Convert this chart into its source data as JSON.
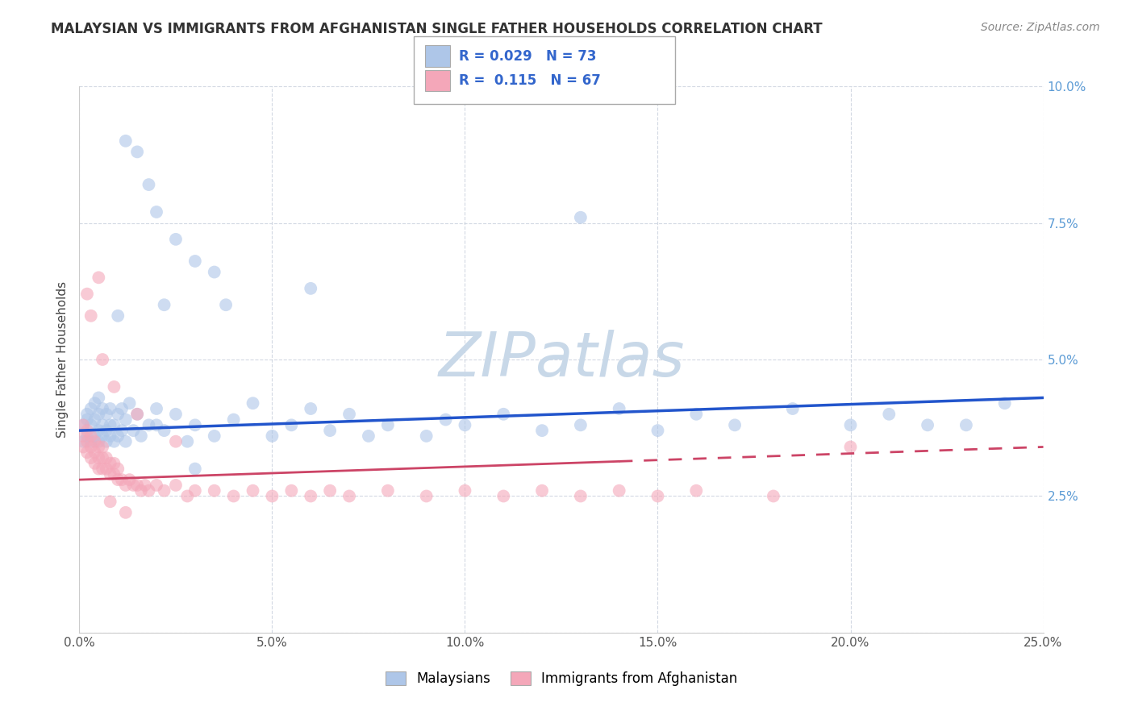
{
  "title": "MALAYSIAN VS IMMIGRANTS FROM AFGHANISTAN SINGLE FATHER HOUSEHOLDS CORRELATION CHART",
  "source": "Source: ZipAtlas.com",
  "ylabel": "Single Father Households",
  "xlim": [
    0.0,
    0.25
  ],
  "ylim": [
    0.0,
    0.1
  ],
  "xticks": [
    0.0,
    0.05,
    0.1,
    0.15,
    0.2,
    0.25
  ],
  "yticks": [
    0.0,
    0.025,
    0.05,
    0.075,
    0.1
  ],
  "xticklabels": [
    "0.0%",
    "5.0%",
    "10.0%",
    "15.0%",
    "20.0%",
    "25.0%"
  ],
  "yticklabels": [
    "",
    "2.5%",
    "5.0%",
    "7.5%",
    "10.0%"
  ],
  "legend_entries": [
    {
      "label": "Malaysians",
      "color": "#aec6e8",
      "R": "0.029",
      "N": "73"
    },
    {
      "label": "Immigrants from Afghanistan",
      "color": "#f4a7b9",
      "R": "0.115",
      "N": "67"
    }
  ],
  "watermark": "ZIPatlas",
  "watermark_color": "#c8d8e8",
  "blue_color": "#aec6e8",
  "pink_color": "#f4a7b9",
  "blue_edge_color": "#7bafd4",
  "pink_edge_color": "#e87090",
  "blue_line_color": "#2255cc",
  "pink_line_color": "#cc4466",
  "grid_color": "#c8d0dc",
  "background_color": "#ffffff",
  "title_color": "#333333",
  "source_color": "#888888",
  "ytick_color": "#5b9bd5",
  "xtick_color": "#555555",
  "malaysian_x": [
    0.001,
    0.001,
    0.002,
    0.002,
    0.002,
    0.003,
    0.003,
    0.003,
    0.004,
    0.004,
    0.004,
    0.005,
    0.005,
    0.005,
    0.005,
    0.006,
    0.006,
    0.006,
    0.007,
    0.007,
    0.007,
    0.008,
    0.008,
    0.008,
    0.009,
    0.009,
    0.01,
    0.01,
    0.011,
    0.011,
    0.012,
    0.012,
    0.013,
    0.014,
    0.015,
    0.016,
    0.018,
    0.02,
    0.022,
    0.025,
    0.028,
    0.03,
    0.035,
    0.04,
    0.045,
    0.05,
    0.055,
    0.06,
    0.065,
    0.07,
    0.075,
    0.08,
    0.09,
    0.095,
    0.1,
    0.11,
    0.12,
    0.13,
    0.14,
    0.15,
    0.16,
    0.17,
    0.185,
    0.2,
    0.21,
    0.22,
    0.23,
    0.24,
    0.13,
    0.06,
    0.02,
    0.03,
    0.01
  ],
  "malaysian_y": [
    0.035,
    0.038,
    0.036,
    0.039,
    0.04,
    0.035,
    0.038,
    0.041,
    0.036,
    0.039,
    0.042,
    0.035,
    0.037,
    0.04,
    0.043,
    0.036,
    0.038,
    0.041,
    0.035,
    0.037,
    0.04,
    0.036,
    0.038,
    0.041,
    0.035,
    0.038,
    0.036,
    0.04,
    0.037,
    0.041,
    0.035,
    0.039,
    0.042,
    0.037,
    0.04,
    0.036,
    0.038,
    0.041,
    0.037,
    0.04,
    0.035,
    0.038,
    0.036,
    0.039,
    0.042,
    0.036,
    0.038,
    0.041,
    0.037,
    0.04,
    0.036,
    0.038,
    0.036,
    0.039,
    0.038,
    0.04,
    0.037,
    0.038,
    0.041,
    0.037,
    0.04,
    0.038,
    0.041,
    0.038,
    0.04,
    0.038,
    0.038,
    0.042,
    0.076,
    0.063,
    0.038,
    0.03,
    0.058
  ],
  "malaysian_y_outliers": [
    0.09,
    0.088,
    0.082,
    0.072,
    0.068,
    0.077,
    0.066,
    0.06,
    0.06
  ],
  "malaysian_x_outliers": [
    0.012,
    0.015,
    0.018,
    0.025,
    0.03,
    0.02,
    0.035,
    0.038,
    0.022
  ],
  "afghan_x": [
    0.001,
    0.001,
    0.001,
    0.002,
    0.002,
    0.002,
    0.003,
    0.003,
    0.003,
    0.004,
    0.004,
    0.004,
    0.005,
    0.005,
    0.005,
    0.006,
    0.006,
    0.006,
    0.007,
    0.007,
    0.008,
    0.008,
    0.009,
    0.009,
    0.01,
    0.01,
    0.011,
    0.012,
    0.013,
    0.014,
    0.015,
    0.016,
    0.017,
    0.018,
    0.02,
    0.022,
    0.025,
    0.028,
    0.03,
    0.035,
    0.04,
    0.045,
    0.05,
    0.055,
    0.06,
    0.065,
    0.07,
    0.08,
    0.09,
    0.1,
    0.11,
    0.12,
    0.13,
    0.14,
    0.15,
    0.16,
    0.18,
    0.2,
    0.012,
    0.008,
    0.005,
    0.003,
    0.002,
    0.006,
    0.009,
    0.015,
    0.025
  ],
  "afghan_y": [
    0.034,
    0.036,
    0.038,
    0.033,
    0.035,
    0.037,
    0.032,
    0.034,
    0.036,
    0.031,
    0.033,
    0.035,
    0.03,
    0.032,
    0.034,
    0.03,
    0.032,
    0.034,
    0.03,
    0.032,
    0.029,
    0.031,
    0.029,
    0.031,
    0.028,
    0.03,
    0.028,
    0.027,
    0.028,
    0.027,
    0.027,
    0.026,
    0.027,
    0.026,
    0.027,
    0.026,
    0.027,
    0.025,
    0.026,
    0.026,
    0.025,
    0.026,
    0.025,
    0.026,
    0.025,
    0.026,
    0.025,
    0.026,
    0.025,
    0.026,
    0.025,
    0.026,
    0.025,
    0.026,
    0.025,
    0.026,
    0.025,
    0.034,
    0.022,
    0.024,
    0.065,
    0.058,
    0.062,
    0.05,
    0.045,
    0.04,
    0.035
  ]
}
